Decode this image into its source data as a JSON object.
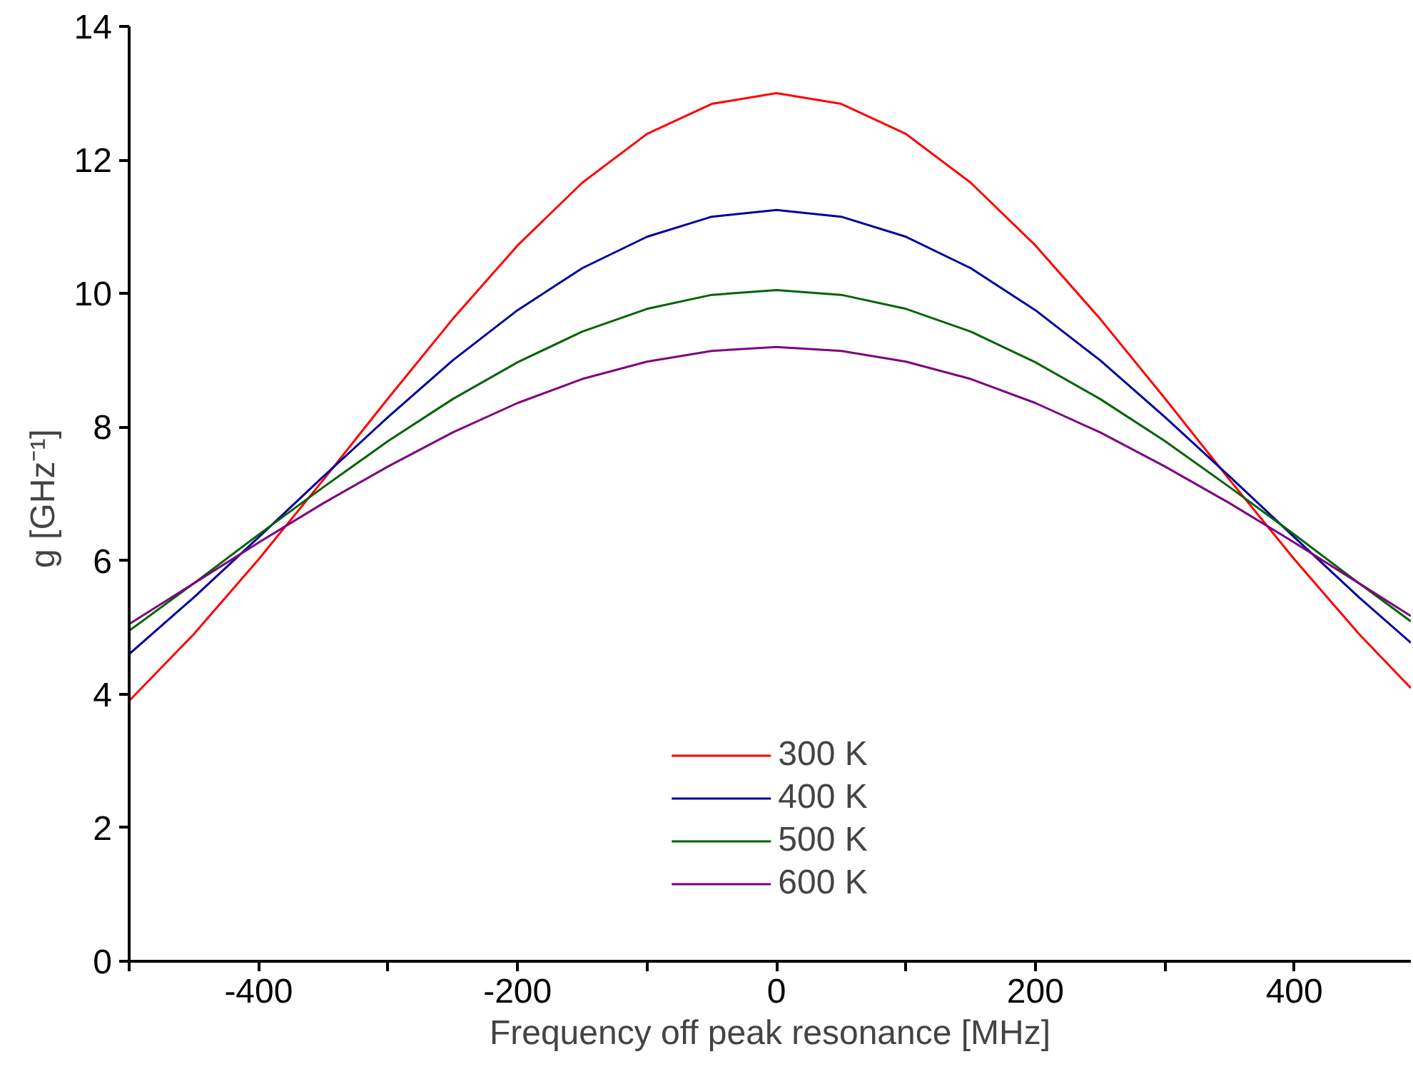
{
  "chart_data": {
    "type": "line",
    "xlabel": "Frequency off peak resonance [MHz]",
    "ylabel": "g  [GHz⁻¹]",
    "x": [
      -500,
      -450,
      -400,
      -350,
      -300,
      -250,
      -200,
      -150,
      -100,
      -50,
      0,
      50,
      100,
      150,
      200,
      250,
      300,
      350,
      400,
      450,
      490
    ],
    "series": [
      {
        "name": "300 K",
        "color": "#ff0000",
        "values": [
          3.9,
          4.9,
          6.02,
          7.21,
          8.43,
          9.62,
          10.72,
          11.66,
          12.39,
          12.84,
          13.0,
          12.84,
          12.39,
          11.66,
          10.72,
          9.62,
          8.43,
          7.21,
          6.02,
          4.9,
          4.09
        ]
      },
      {
        "name": "400 K",
        "color": "#0000a0",
        "values": [
          4.6,
          5.45,
          6.35,
          7.26,
          8.15,
          9.0,
          9.75,
          10.38,
          10.85,
          11.15,
          11.25,
          11.15,
          10.85,
          10.38,
          9.75,
          9.0,
          8.15,
          7.26,
          6.35,
          5.45,
          4.77
        ]
      },
      {
        "name": "500 K",
        "color": "#006400",
        "values": [
          4.95,
          5.66,
          6.39,
          7.1,
          7.79,
          8.42,
          8.97,
          9.43,
          9.77,
          9.98,
          10.05,
          9.98,
          9.77,
          9.43,
          8.97,
          8.42,
          7.79,
          7.1,
          6.39,
          5.66,
          5.09
        ]
      },
      {
        "name": "600 K",
        "color": "#800080",
        "values": [
          5.05,
          5.66,
          6.27,
          6.86,
          7.41,
          7.92,
          8.36,
          8.72,
          8.98,
          9.14,
          9.2,
          9.14,
          8.98,
          8.72,
          8.36,
          7.92,
          7.41,
          6.86,
          6.27,
          5.66,
          5.17
        ]
      }
    ],
    "xlim": [
      -500,
      490
    ],
    "ylim": [
      0,
      14
    ],
    "xticks": [
      {
        "value": -500,
        "label": null
      },
      -400,
      {
        "value": -300,
        "label": null
      },
      -200,
      {
        "value": -100,
        "label": null
      },
      0,
      {
        "value": 100,
        "label": null
      },
      200,
      {
        "value": 300,
        "label": null
      },
      400
    ],
    "yticks": [
      0,
      2,
      4,
      6,
      8,
      10,
      12,
      14
    ],
    "grid": false,
    "legend": "bottom",
    "line_style": "solid",
    "marker": "none"
  }
}
